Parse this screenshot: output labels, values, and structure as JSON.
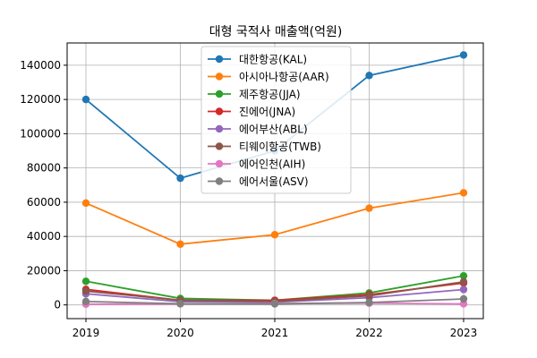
{
  "chart_data": {
    "type": "line",
    "title": "대형 국적사 매출액(억원)",
    "xlabel": "",
    "ylabel": "",
    "x": [
      "2019",
      "2020",
      "2021",
      "2022",
      "2023"
    ],
    "ylim": [
      -8000,
      153000
    ],
    "yticks": [
      0,
      20000,
      40000,
      60000,
      80000,
      100000,
      120000,
      140000
    ],
    "grid": true,
    "legend_position": "top-center",
    "series": [
      {
        "name": "대한항공(KAL)",
        "color": "#1f77b4",
        "values": [
          120000,
          74000,
          90000,
          134000,
          146000
        ]
      },
      {
        "name": "아시아나항공(AAR)",
        "color": "#ff7f0e",
        "values": [
          59500,
          35500,
          41000,
          56500,
          65500
        ]
      },
      {
        "name": "제주항공(JJA)",
        "color": "#2ca02c",
        "values": [
          13800,
          3800,
          2700,
          7000,
          17000
        ]
      },
      {
        "name": "진에어(JNA)",
        "color": "#d62728",
        "values": [
          9100,
          2700,
          2700,
          6000,
          12800
        ]
      },
      {
        "name": "에어부산(ABL)",
        "color": "#9467bd",
        "values": [
          6500,
          1900,
          1600,
          4200,
          9000
        ]
      },
      {
        "name": "티웨이항공(TWB)",
        "color": "#8c564b",
        "values": [
          8100,
          2700,
          2100,
          5300,
          13500
        ]
      },
      {
        "name": "에어인천(AIH)",
        "color": "#e377c2",
        "values": [
          400,
          600,
          800,
          1000,
          600
        ]
      },
      {
        "name": "에어서울(ASV)",
        "color": "#7f7f7f",
        "values": [
          2000,
          700,
          600,
          1400,
          3500
        ]
      }
    ]
  }
}
